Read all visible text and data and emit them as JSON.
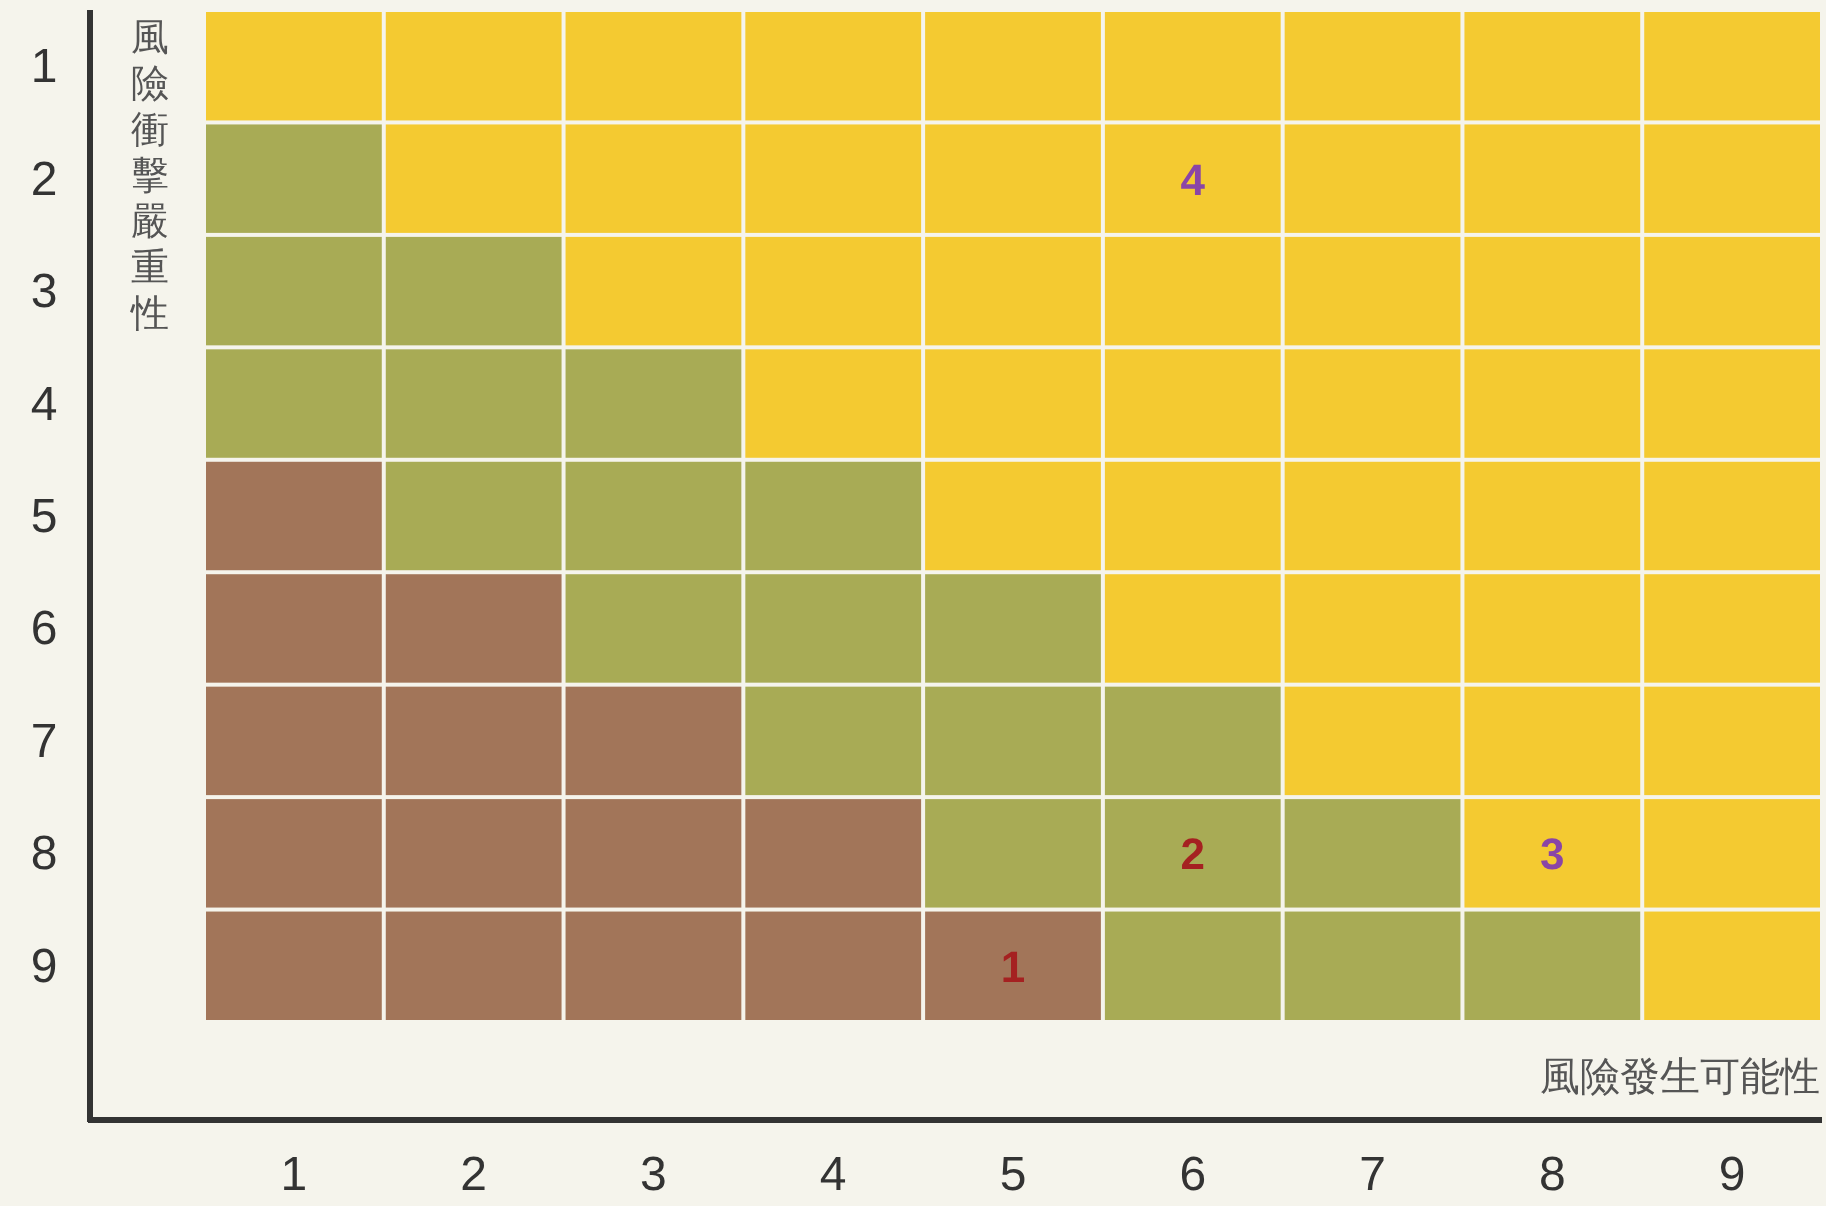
{
  "chart_data": {
    "type": "bar",
    "orientation": "horizontal",
    "stacked": true,
    "xlabel": "風險發生可能性",
    "ylabel": "風險衝擊嚴重性",
    "categories": [
      "1",
      "2",
      "3",
      "4",
      "5",
      "6",
      "7",
      "8",
      "9"
    ],
    "xlim": [
      0,
      9
    ],
    "xticks": [
      {
        "value": 0.5,
        "label": "1"
      },
      {
        "value": 1.5,
        "label": "2"
      },
      {
        "value": 2.5,
        "label": "3"
      },
      {
        "value": 3.5,
        "label": "4"
      },
      {
        "value": 4.5,
        "label": "5"
      },
      {
        "value": 5.5,
        "label": "6"
      },
      {
        "value": 6.5,
        "label": "7"
      },
      {
        "value": 7.5,
        "label": "8"
      },
      {
        "value": 8.5,
        "label": "9"
      }
    ],
    "series": [
      {
        "values": [
          1,
          1,
          1,
          1,
          1,
          1,
          1,
          1,
          1
        ],
        "colors": [
          "#f4ca31",
          "#a8ab55",
          "#a8ab55",
          "#a8ab55",
          "#a27559",
          "#a27559",
          "#a27559",
          "#a27559",
          "#a27559"
        ]
      },
      {
        "values": [
          1,
          1,
          1,
          1,
          1,
          1,
          1,
          1,
          1
        ],
        "colors": [
          "#f4ca31",
          "#f4ca31",
          "#a8ab55",
          "#a8ab55",
          "#a8ab55",
          "#a27559",
          "#a27559",
          "#a27559",
          "#a27559"
        ]
      },
      {
        "values": [
          1,
          1,
          1,
          1,
          1,
          1,
          1,
          1,
          1
        ],
        "colors": [
          "#f4ca31",
          "#f4ca31",
          "#f4ca31",
          "#a8ab55",
          "#a8ab55",
          "#a8ab55",
          "#a27559",
          "#a27559",
          "#a27559"
        ]
      },
      {
        "values": [
          1,
          1,
          1,
          1,
          1,
          1,
          1,
          1,
          1
        ],
        "colors": [
          "#f4ca31",
          "#f4ca31",
          "#f4ca31",
          "#f4ca31",
          "#a8ab55",
          "#a8ab55",
          "#a8ab55",
          "#a27559",
          "#a27559"
        ]
      },
      {
        "values": [
          1,
          1,
          1,
          1,
          1,
          1,
          1,
          1,
          1
        ],
        "colors": [
          "#f4ca31",
          "#f4ca31",
          "#f4ca31",
          "#f4ca31",
          "#f4ca31",
          "#a8ab55",
          "#a8ab55",
          "#a8ab55",
          "#a27559"
        ]
      },
      {
        "values": [
          1,
          1,
          1,
          1,
          1,
          1,
          1,
          1,
          1
        ],
        "colors": [
          "#f4ca31",
          "#f4ca31",
          "#f4ca31",
          "#f4ca31",
          "#f4ca31",
          "#f4ca31",
          "#a8ab55",
          "#a8ab55",
          "#a8ab55"
        ]
      },
      {
        "values": [
          1,
          1,
          1,
          1,
          1,
          1,
          1,
          1,
          1
        ],
        "colors": [
          "#f4ca31",
          "#f4ca31",
          "#f4ca31",
          "#f4ca31",
          "#f4ca31",
          "#f4ca31",
          "#f4ca31",
          "#a8ab55",
          "#a8ab55"
        ]
      },
      {
        "values": [
          1,
          1,
          1,
          1,
          1,
          1,
          1,
          1,
          1
        ],
        "colors": [
          "#f4ca31",
          "#f4ca31",
          "#f4ca31",
          "#f4ca31",
          "#f4ca31",
          "#f4ca31",
          "#f4ca31",
          "#f4ca31",
          "#a8ab55"
        ]
      },
      {
        "values": [
          1,
          1,
          1,
          1,
          1,
          1,
          1,
          1,
          1
        ],
        "colors": [
          "#f4ca31",
          "#f4ca31",
          "#f4ca31",
          "#f4ca31",
          "#f4ca31",
          "#f4ca31",
          "#f4ca31",
          "#f4ca31",
          "#f4ca31"
        ]
      }
    ],
    "annotations": [
      "4",
      "2",
      "3",
      "1"
    ]
  }
}
